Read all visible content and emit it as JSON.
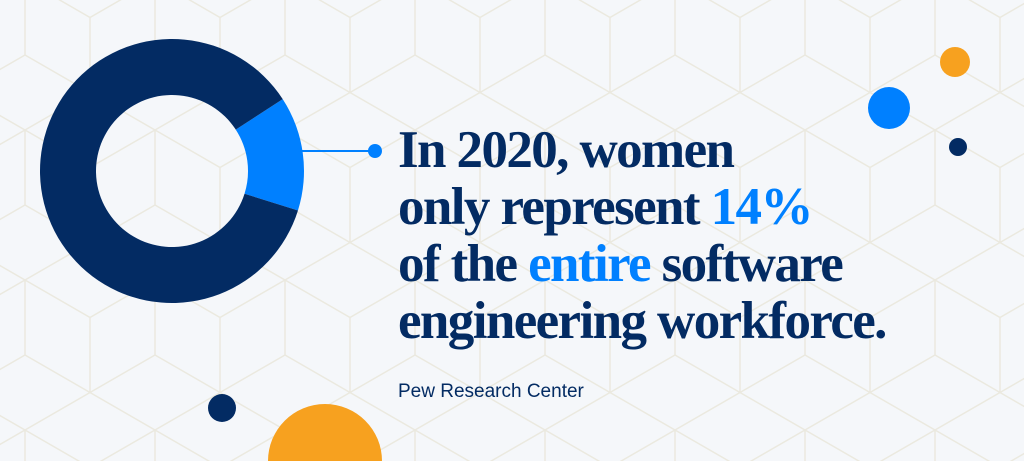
{
  "chart_data": {
    "type": "pie",
    "style": "donut",
    "slices": [
      {
        "label": "women",
        "value": 14,
        "color": "#0080ff"
      },
      {
        "label": "other",
        "value": 86,
        "color": "#032b63"
      }
    ]
  },
  "headline": {
    "line1": "In 2020, women",
    "line2_a": "only represent ",
    "line2_highlight": "14%",
    "line3_a": "of the ",
    "line3_highlight": "entire",
    "line3_b": " software",
    "line4": "engineering workforce."
  },
  "source": "Pew Research Center",
  "colors": {
    "navy": "#032b63",
    "blue": "#0080ff",
    "orange": "#f7a11f",
    "background": "#f5f7fa"
  }
}
